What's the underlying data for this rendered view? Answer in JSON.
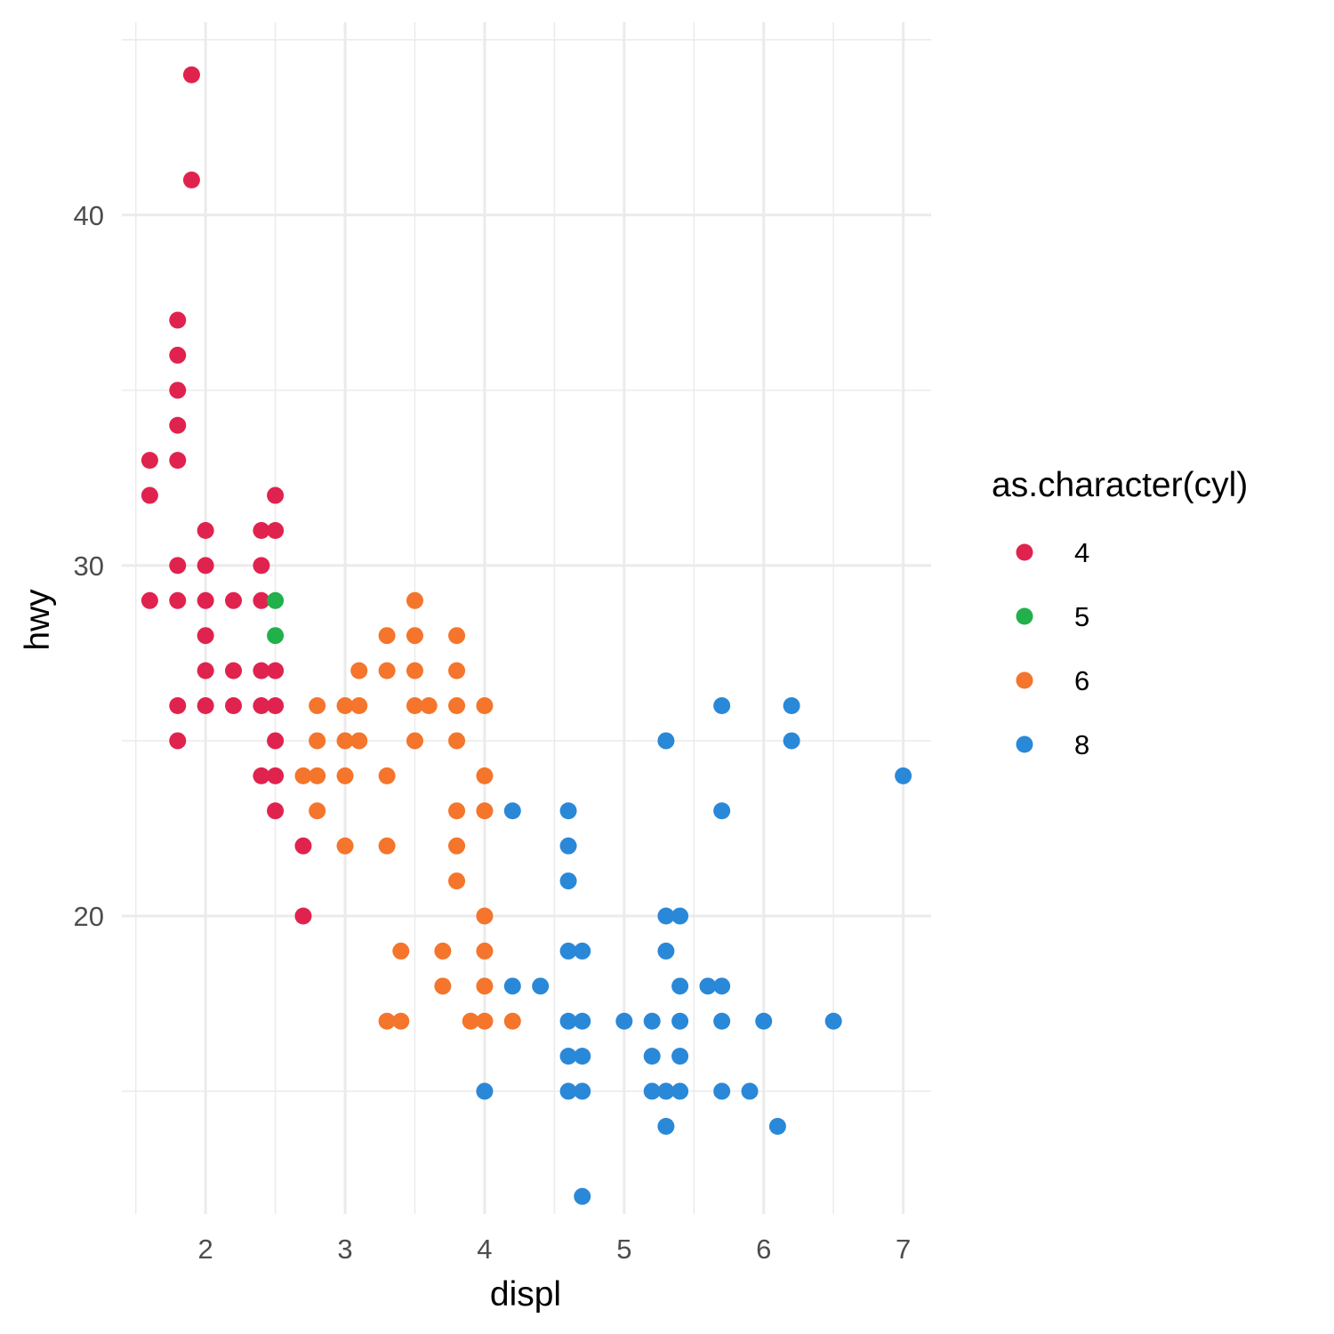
{
  "chart_data": {
    "type": "scatter",
    "title": "",
    "xlabel": "displ",
    "ylabel": "hwy",
    "xlim": [
      1.4,
      7.2
    ],
    "ylim": [
      11.5,
      45.5
    ],
    "x_ticks": [
      2,
      3,
      4,
      5,
      6,
      7
    ],
    "x_tick_labels": [
      "2",
      "3",
      "4",
      "5",
      "6",
      "7"
    ],
    "y_ticks": [
      20,
      30,
      40
    ],
    "y_tick_labels": [
      "20",
      "30",
      "40"
    ],
    "grid": true,
    "legend": {
      "title": "as.character(cyl)",
      "placement": "right",
      "entries": [
        {
          "label": "4",
          "color": "#E0234E"
        },
        {
          "label": "5",
          "color": "#22B04B"
        },
        {
          "label": "6",
          "color": "#F4752B"
        },
        {
          "label": "8",
          "color": "#2A88D8"
        }
      ]
    },
    "series": [
      {
        "name": "4",
        "color": "#E0234E",
        "points": [
          [
            1.9,
            44
          ],
          [
            1.9,
            41
          ],
          [
            1.8,
            37
          ],
          [
            1.8,
            36
          ],
          [
            1.8,
            35
          ],
          [
            1.8,
            34
          ],
          [
            1.8,
            33
          ],
          [
            1.6,
            33
          ],
          [
            1.6,
            32
          ],
          [
            2.5,
            32
          ],
          [
            2.0,
            31
          ],
          [
            2.4,
            31
          ],
          [
            2.5,
            31
          ],
          [
            1.8,
            30
          ],
          [
            2.0,
            30
          ],
          [
            2.4,
            30
          ],
          [
            1.6,
            29
          ],
          [
            1.8,
            29
          ],
          [
            2.0,
            29
          ],
          [
            2.2,
            29
          ],
          [
            2.4,
            29
          ],
          [
            2.0,
            28
          ],
          [
            2.0,
            27
          ],
          [
            2.2,
            27
          ],
          [
            2.4,
            27
          ],
          [
            2.5,
            27
          ],
          [
            1.8,
            26
          ],
          [
            2.0,
            26
          ],
          [
            2.2,
            26
          ],
          [
            2.4,
            26
          ],
          [
            2.5,
            26
          ],
          [
            1.8,
            25
          ],
          [
            2.5,
            25
          ],
          [
            2.4,
            24
          ],
          [
            2.5,
            24
          ],
          [
            2.5,
            23
          ],
          [
            2.7,
            22
          ],
          [
            2.7,
            20
          ]
        ]
      },
      {
        "name": "5",
        "color": "#22B04B",
        "points": [
          [
            2.5,
            29
          ],
          [
            2.5,
            28
          ]
        ]
      },
      {
        "name": "6",
        "color": "#F4752B",
        "points": [
          [
            3.5,
            29
          ],
          [
            3.3,
            28
          ],
          [
            3.5,
            28
          ],
          [
            3.8,
            28
          ],
          [
            3.1,
            27
          ],
          [
            3.3,
            27
          ],
          [
            3.5,
            27
          ],
          [
            3.8,
            27
          ],
          [
            2.8,
            26
          ],
          [
            3.0,
            26
          ],
          [
            3.1,
            26
          ],
          [
            3.5,
            26
          ],
          [
            3.6,
            26
          ],
          [
            3.8,
            26
          ],
          [
            4.0,
            26
          ],
          [
            2.8,
            25
          ],
          [
            3.0,
            25
          ],
          [
            3.1,
            25
          ],
          [
            3.5,
            25
          ],
          [
            3.8,
            25
          ],
          [
            2.7,
            24
          ],
          [
            2.8,
            24
          ],
          [
            3.0,
            24
          ],
          [
            3.3,
            24
          ],
          [
            4.0,
            24
          ],
          [
            2.8,
            23
          ],
          [
            3.8,
            23
          ],
          [
            4.0,
            23
          ],
          [
            3.0,
            22
          ],
          [
            3.3,
            22
          ],
          [
            3.8,
            22
          ],
          [
            3.8,
            21
          ],
          [
            4.0,
            20
          ],
          [
            3.4,
            19
          ],
          [
            3.7,
            19
          ],
          [
            4.0,
            19
          ],
          [
            3.7,
            18
          ],
          [
            4.0,
            18
          ],
          [
            3.3,
            17
          ],
          [
            3.4,
            17
          ],
          [
            3.9,
            17
          ],
          [
            4.0,
            17
          ],
          [
            4.2,
            17
          ]
        ]
      },
      {
        "name": "8",
        "color": "#2A88D8",
        "points": [
          [
            5.7,
            26
          ],
          [
            6.2,
            26
          ],
          [
            5.3,
            25
          ],
          [
            6.2,
            25
          ],
          [
            7.0,
            24
          ],
          [
            4.2,
            23
          ],
          [
            4.6,
            23
          ],
          [
            5.7,
            23
          ],
          [
            4.6,
            22
          ],
          [
            4.6,
            21
          ],
          [
            5.3,
            20
          ],
          [
            5.4,
            20
          ],
          [
            4.6,
            19
          ],
          [
            4.7,
            19
          ],
          [
            5.3,
            19
          ],
          [
            4.2,
            18
          ],
          [
            4.4,
            18
          ],
          [
            5.4,
            18
          ],
          [
            5.6,
            18
          ],
          [
            5.7,
            18
          ],
          [
            4.6,
            17
          ],
          [
            4.7,
            17
          ],
          [
            5.0,
            17
          ],
          [
            5.2,
            17
          ],
          [
            5.4,
            17
          ],
          [
            5.7,
            17
          ],
          [
            6.0,
            17
          ],
          [
            6.5,
            17
          ],
          [
            4.6,
            16
          ],
          [
            4.7,
            16
          ],
          [
            5.2,
            16
          ],
          [
            5.4,
            16
          ],
          [
            4.0,
            15
          ],
          [
            4.6,
            15
          ],
          [
            4.7,
            15
          ],
          [
            5.2,
            15
          ],
          [
            5.3,
            15
          ],
          [
            5.4,
            15
          ],
          [
            5.7,
            15
          ],
          [
            5.9,
            15
          ],
          [
            5.3,
            14
          ],
          [
            6.1,
            14
          ],
          [
            4.7,
            12
          ]
        ]
      }
    ]
  }
}
